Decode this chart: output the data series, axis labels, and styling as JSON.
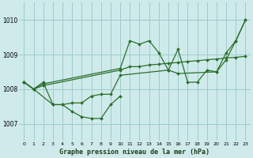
{
  "xlabel": "Graphe pression niveau de la mer (hPa)",
  "bg_color": "#ceeaea",
  "grid_color": "#a0cccc",
  "line_color": "#2d6e2d",
  "ylim": [
    1006.5,
    1010.5
  ],
  "xlim": [
    -0.5,
    23.5
  ],
  "yticks": [
    1007,
    1008,
    1009,
    1010
  ],
  "xticks": [
    0,
    1,
    2,
    3,
    4,
    5,
    6,
    7,
    8,
    9,
    10,
    11,
    12,
    13,
    14,
    15,
    16,
    17,
    18,
    19,
    20,
    21,
    22,
    23
  ],
  "series": [
    {
      "x": [
        0,
        1,
        3,
        4,
        5,
        6,
        7,
        8,
        9,
        10
      ],
      "y": [
        1008.2,
        1008.0,
        1007.55,
        1007.55,
        1007.35,
        1007.2,
        1007.15,
        1007.15,
        1007.55,
        1007.8
      ]
    },
    {
      "x": [
        0,
        1,
        2,
        10,
        11,
        12,
        13,
        14,
        15,
        16,
        17,
        18,
        19,
        20,
        21,
        22,
        23
      ],
      "y": [
        1008.2,
        1008.0,
        1008.1,
        1008.55,
        1008.65,
        1008.65,
        1008.7,
        1008.72,
        1008.75,
        1008.77,
        1008.8,
        1008.82,
        1008.85,
        1008.87,
        1008.9,
        1008.92,
        1008.95
      ]
    },
    {
      "x": [
        0,
        1,
        2,
        10,
        11,
        12,
        13,
        14,
        15,
        16,
        17,
        18,
        19,
        20,
        21,
        22,
        23
      ],
      "y": [
        1008.2,
        1008.0,
        1008.15,
        1008.6,
        1009.4,
        1009.3,
        1009.4,
        1009.05,
        1008.55,
        1009.15,
        1008.2,
        1008.2,
        1008.55,
        1008.5,
        1009.05,
        1009.4,
        1010.0
      ]
    },
    {
      "x": [
        0,
        1,
        2,
        3,
        4,
        5,
        6,
        7,
        8,
        9,
        10,
        15,
        16,
        20,
        21,
        22,
        23
      ],
      "y": [
        1008.2,
        1008.0,
        1008.2,
        1007.55,
        1007.55,
        1007.6,
        1007.6,
        1007.8,
        1007.85,
        1007.85,
        1008.4,
        1008.55,
        1008.45,
        1008.5,
        1008.85,
        1009.4,
        1010.0
      ]
    }
  ]
}
